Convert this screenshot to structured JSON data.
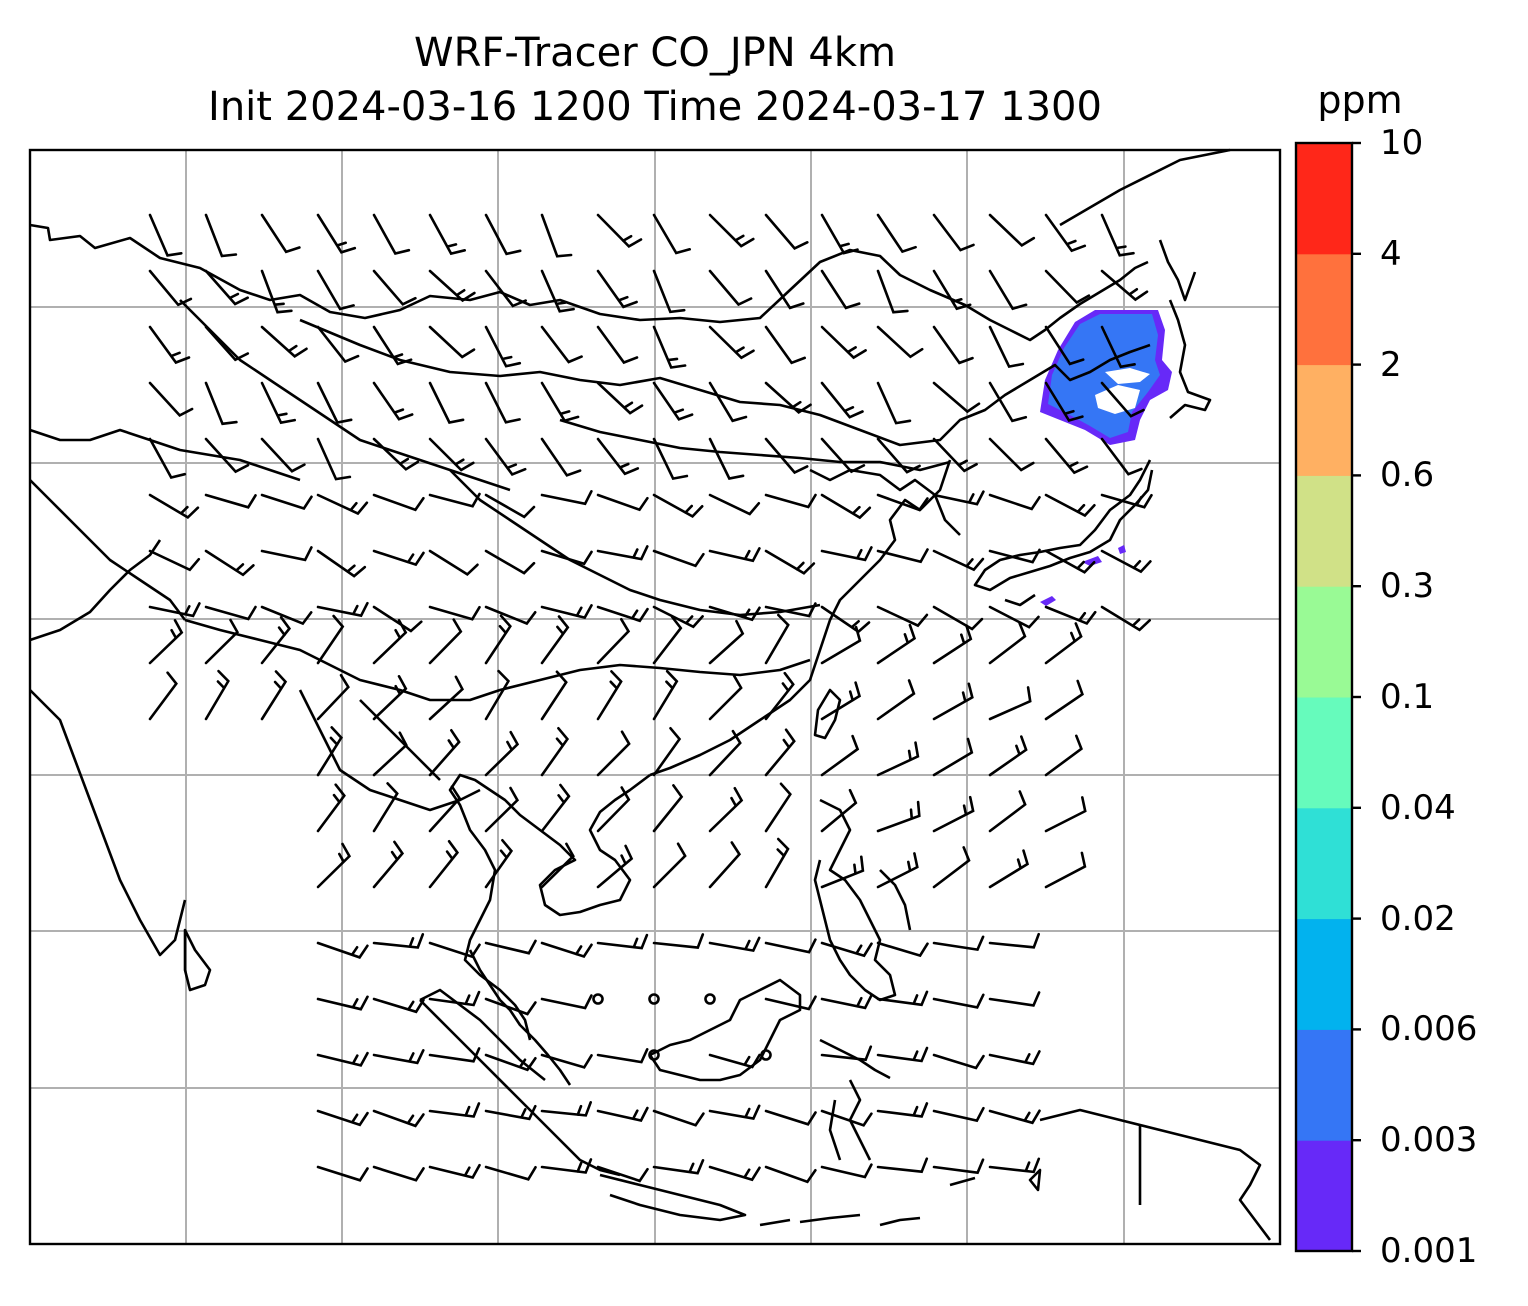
{
  "title": {
    "line1": "WRF-Tracer CO_JPN 4km",
    "line2": "Init 2024-03-16 1200 Time 2024-03-17 1300"
  },
  "colorbar": {
    "unit": "ppm",
    "levels": [
      "0.001",
      "0.003",
      "0.006",
      "0.02",
      "0.04",
      "0.1",
      "0.3",
      "0.6",
      "2",
      "4",
      "10"
    ],
    "colors": [
      "#6729f8",
      "#3576f5",
      "#02b2ee",
      "#2fe0d6",
      "#66fbbc",
      "#99fa95",
      "#d0e187",
      "#ffb062",
      "#ff713d",
      "#ff2719"
    ]
  },
  "map": {
    "type": "contour-with-wind-barbs",
    "land_color": "#000000",
    "gridlines": true,
    "grid_color": "#b0b0b0",
    "plume_color": "#3576f5",
    "plume_edge_color": "#6729f8"
  }
}
